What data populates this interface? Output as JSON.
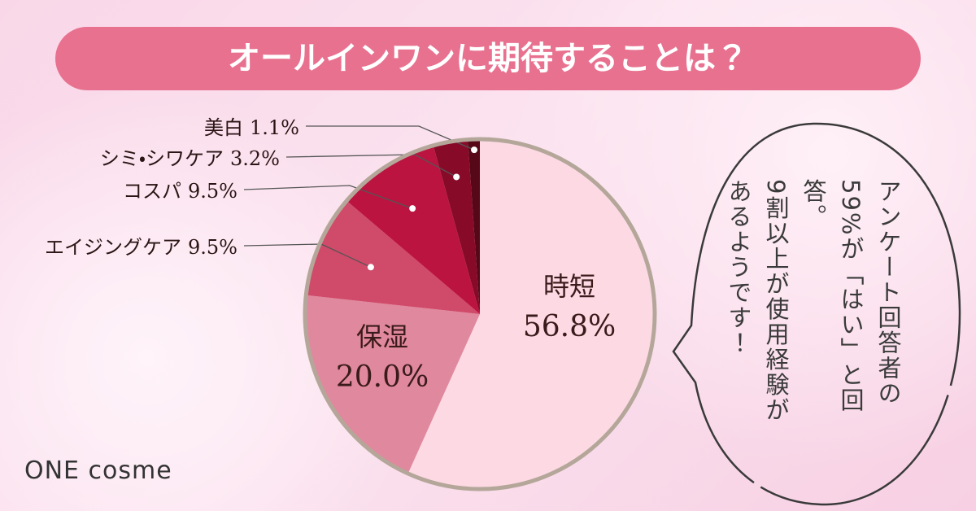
{
  "chart_data": {
    "type": "pie",
    "title": "オールインワンに期待することは？",
    "categories": [
      "時短",
      "保湿",
      "エイジングケア",
      "コスパ",
      "シミ・シワケア",
      "美白"
    ],
    "values": [
      56.8,
      20.0,
      9.5,
      9.5,
      3.2,
      1.1
    ],
    "value_labels": [
      "56.8%",
      "20.0%",
      "9.5%",
      "9.5%",
      "3.2%",
      "1.1%"
    ],
    "colors": [
      "#fcd9e3",
      "#e0889d",
      "#d04a6a",
      "#bb1440",
      "#880a29",
      "#560818"
    ]
  },
  "callout": {
    "lines": [
      "アンケート回答者の",
      "59%が「はい」と回答。",
      "9割以上が使用経験が",
      "あるようです！"
    ]
  },
  "brand": "ONE cosme"
}
